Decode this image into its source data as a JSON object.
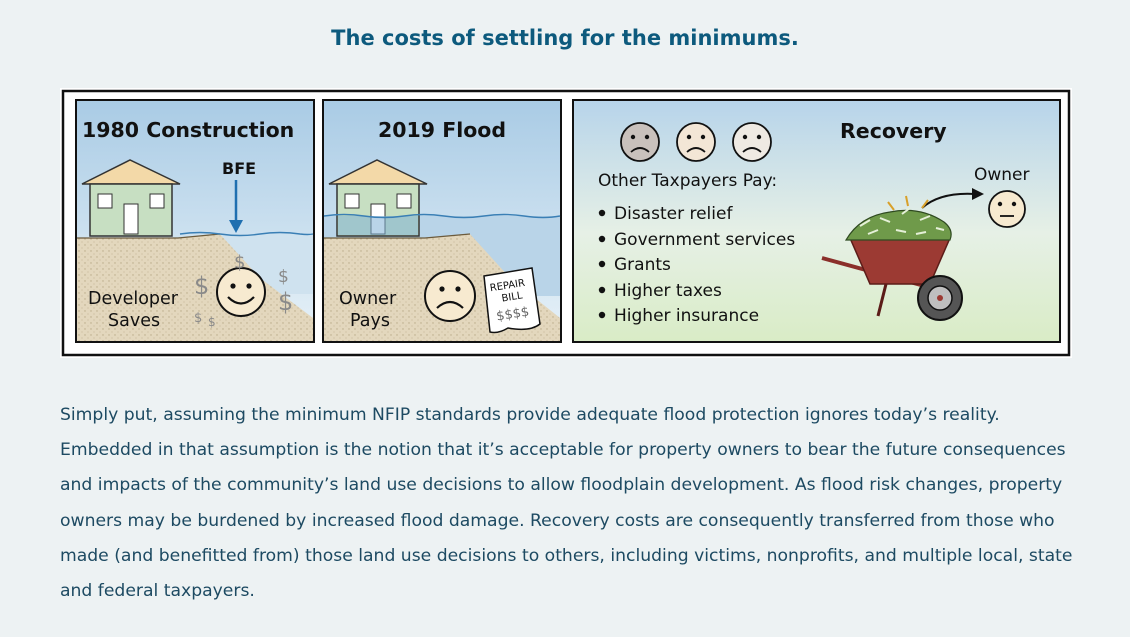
{
  "header": {
    "title": "The costs of settling for the minimums."
  },
  "figure": {
    "panel1": {
      "title": "1980 Construction",
      "marker": "BFE",
      "caption_line1": "Developer",
      "caption_line2": "Saves",
      "dollar_sign": "$"
    },
    "panel2": {
      "title": "2019 Flood",
      "caption_line1": "Owner",
      "caption_line2": "Pays",
      "bill_line1": "REPAIR",
      "bill_line2": "BILL",
      "bill_line3": "$$$$"
    },
    "panel3": {
      "title": "Recovery",
      "subtitle": "Other Taxpayers Pay:",
      "owner_label": "Owner",
      "items": [
        "Disaster relief",
        "Government services",
        "Grants",
        "Higher taxes",
        "Higher insurance"
      ]
    }
  },
  "body": {
    "paragraph": "Simply put, assuming the minimum NFIP standards provide adequate flood protection ignores today’s reality. Embedded in that assumption is the notion that it’s acceptable for property owners to bear the future consequences and impacts of the community’s land use decisions to allow floodplain development. As flood risk changes, property owners may be burdened by increased flood damage. Recovery costs are consequently transferred from those who made (and benefitted from) those land use decisions to others, including victims, nonprofits, and multiple local, state and federal taxpayers."
  }
}
